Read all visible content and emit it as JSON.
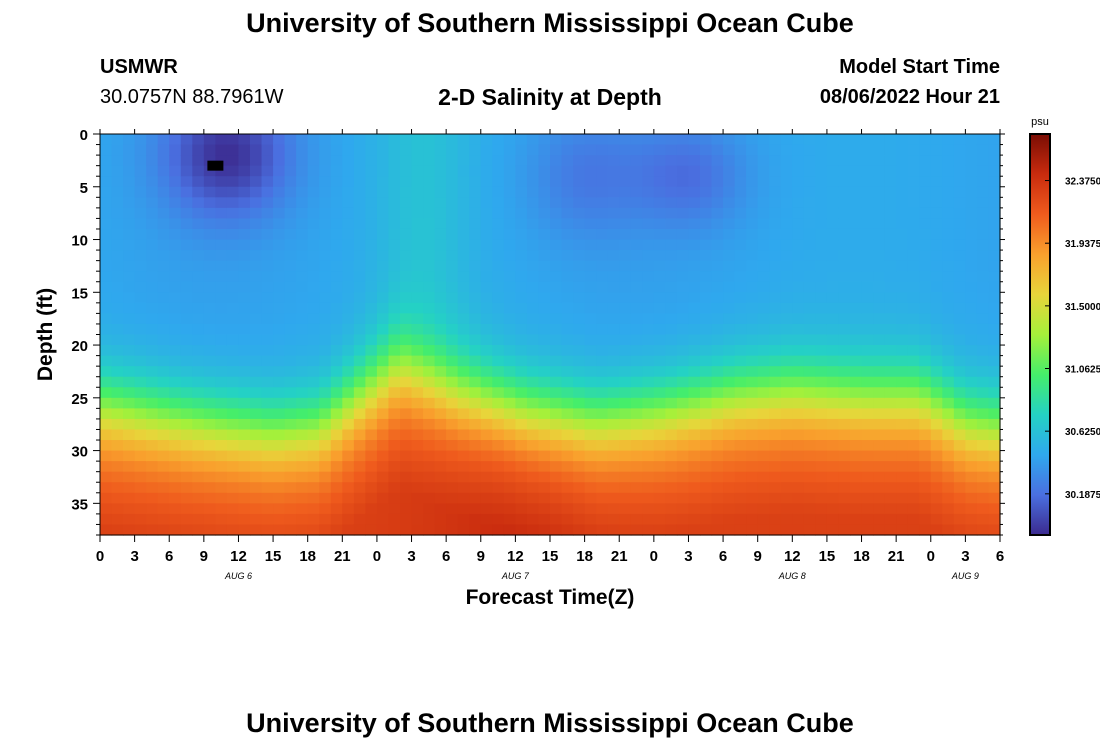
{
  "page": {
    "title_top": "University of Southern Mississippi Ocean Cube",
    "title_bottom": "University of Southern Mississippi Ocean Cube",
    "station_id": "USMWR",
    "coordinates": "30.0757N  88.7961W",
    "subtitle": "2-D Salinity at Depth",
    "model_start_label": "Model Start Time",
    "model_start_value": "08/06/2022 Hour 21"
  },
  "chart_data": {
    "type": "heatmap",
    "title": "2-D Salinity at Depth",
    "xlabel": "Forecast Time(Z)",
    "ylabel": "Depth (ft)",
    "x_start_hour": 0,
    "x_end_hour": 78,
    "x_tick_labels": [
      "0",
      "3",
      "6",
      "9",
      "12",
      "15",
      "18",
      "21",
      "0",
      "3",
      "6",
      "9",
      "12",
      "15",
      "18",
      "21",
      "0",
      "3",
      "6",
      "9",
      "12",
      "15",
      "18",
      "21",
      "0",
      "3",
      "6"
    ],
    "day_labels": [
      {
        "text": "AUG 6",
        "hour": 12
      },
      {
        "text": "AUG 7",
        "hour": 36
      },
      {
        "text": "AUG 8",
        "hour": 60
      },
      {
        "text": "AUG 9",
        "hour": 75
      }
    ],
    "y_range": [
      0,
      38
    ],
    "y_ticks": [
      0,
      5,
      10,
      15,
      20,
      25,
      30,
      35
    ],
    "grid": false,
    "colorbar": {
      "unit": "psu",
      "min": 29.9,
      "max": 32.7,
      "tick_values": [
        32.375,
        31.9375,
        31.5,
        31.0625,
        30.625,
        30.1875
      ],
      "tick_labels": [
        "32.3750",
        "31.9375",
        "31.5000",
        "31.0625",
        "30.6250",
        "30.1875"
      ],
      "colors": [
        "#3b2a8f",
        "#4a6fe0",
        "#2fa8ee",
        "#24d2c4",
        "#45ee6a",
        "#a6f03a",
        "#e8d53a",
        "#f9a02d",
        "#ef5b1d",
        "#c92b0e",
        "#7a0d04"
      ]
    },
    "model_description": "Salinity field: low-salinity layer near surface (~30.1-30.4 psu), strong minimum near hours 6-15 at 0-8 ft (~29.95 psu), halocline around 20-28 ft rising to ~18 ft near hour 26, high salinity (~32.0-32.5 psu) at depth.",
    "marker": {
      "hour": 10,
      "depth": 3
    }
  }
}
